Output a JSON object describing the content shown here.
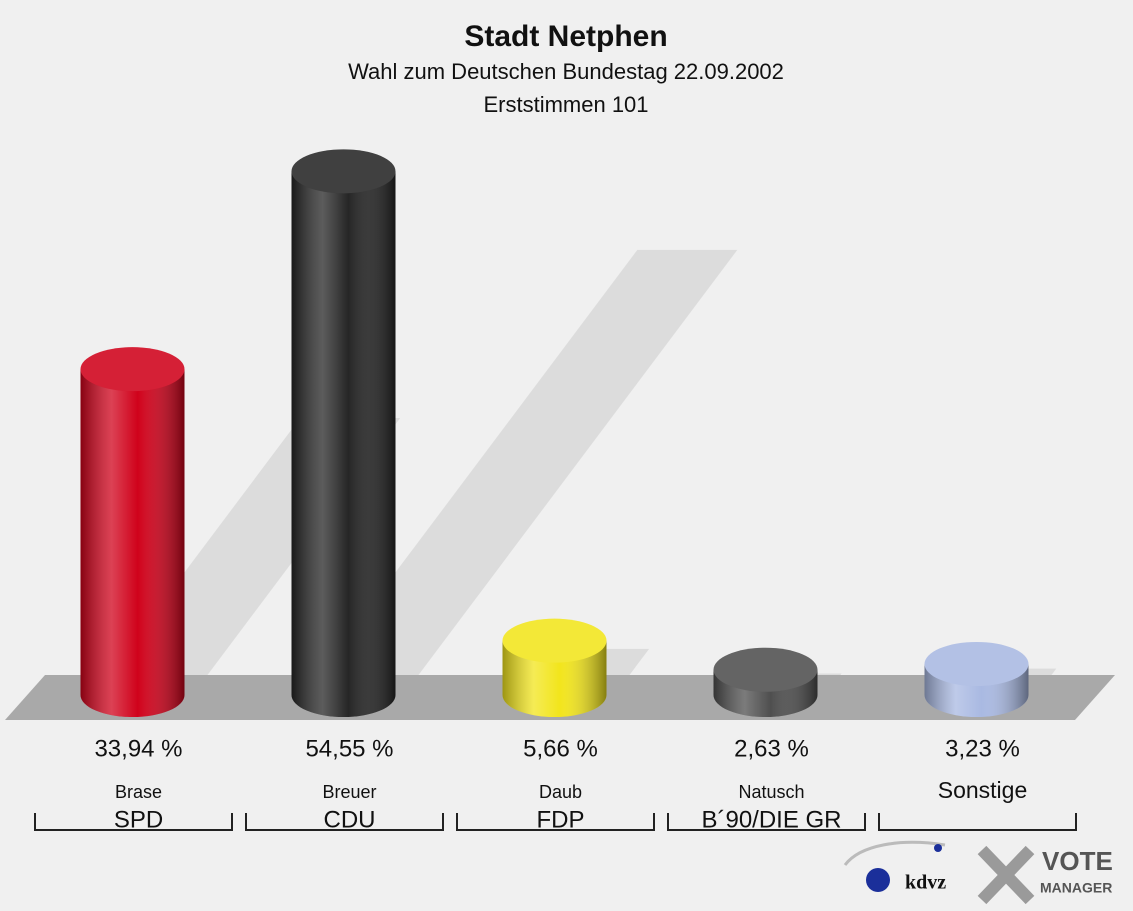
{
  "chart_data": {
    "type": "bar",
    "title": "Stadt Netphen",
    "subtitle": "Wahl zum Deutschen Bundestag 22.09.2002",
    "subtitle2": "Erststimmen 101",
    "categories": [
      "Brase",
      "Breuer",
      "Daub",
      "Natusch",
      "Sonstige"
    ],
    "parties": [
      "SPD",
      "CDU",
      "FDP",
      "B´90/DIE GR",
      null
    ],
    "values": [
      33.94,
      54.55,
      5.66,
      2.63,
      3.23
    ],
    "value_labels": [
      "33,94 %",
      "54,55 %",
      "5,66 %",
      "2,63 %",
      "3,23 %"
    ],
    "colors": [
      "#d0021b",
      "#262626",
      "#f2e51c",
      "#4f4f4f",
      "#a9b9e2"
    ],
    "ylim": [
      0,
      60
    ],
    "grid": false,
    "logo": {
      "kdvz": "kdvz",
      "vote": "VOTE",
      "manager": "MANAGER"
    }
  }
}
